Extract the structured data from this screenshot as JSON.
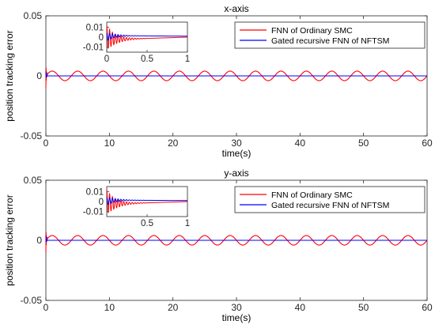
{
  "chart_data": [
    {
      "type": "line",
      "title": "x-axis",
      "xlabel": "time(s)",
      "ylabel": "position tracking error",
      "xlim": [
        0,
        60
      ],
      "ylim": [
        -0.05,
        0.05
      ],
      "xticks": [
        0,
        10,
        20,
        30,
        40,
        50,
        60
      ],
      "xtick_labels": [
        "0",
        "10",
        "20",
        "30",
        "40",
        "50",
        "60"
      ],
      "yticks": [
        -0.05,
        0,
        0.05
      ],
      "ytick_labels": [
        "-0.05",
        "0",
        "0.05"
      ],
      "legend_position": "top-right",
      "series": [
        {
          "name": "FNN of Ordinary SMC",
          "color": "#ff0000",
          "shape": "sinusoid",
          "amplitude": 0.004,
          "period": 4.0,
          "initial_spike": -0.01
        },
        {
          "name": "Gated recursive FNN of NFTSM",
          "color": "#0000ff",
          "shape": "flat",
          "value": 0.0,
          "initial_spike": 0.004
        }
      ],
      "inset": {
        "xlim": [
          0,
          1
        ],
        "ylim": [
          -0.015,
          0.015
        ],
        "xticks": [
          0,
          0.5,
          1
        ],
        "xtick_labels": [
          "0",
          "0.5",
          "1"
        ],
        "yticks": [
          -0.01,
          0,
          0.01
        ],
        "ytick_labels": [
          "-0.01",
          "0",
          "0.01"
        ],
        "series": [
          {
            "name": "FNN of Ordinary SMC",
            "color": "#ff0000",
            "shape": "damped-oscillation",
            "initial_amplitude": 0.012,
            "settle_value": -0.0025,
            "final_value": 0.0
          },
          {
            "name": "Gated recursive FNN of NFTSM",
            "color": "#0000ff",
            "shape": "damped-oscillation",
            "initial_amplitude": 0.004,
            "settle_value": 0.0015,
            "final_value": 0.001
          }
        ]
      }
    },
    {
      "type": "line",
      "title": "y-axis",
      "xlabel": "time(s)",
      "ylabel": "position tracking error",
      "xlim": [
        0,
        60
      ],
      "ylim": [
        -0.05,
        0.05
      ],
      "xticks": [
        0,
        10,
        20,
        30,
        40,
        50,
        60
      ],
      "xtick_labels": [
        "0",
        "10",
        "20",
        "30",
        "40",
        "50",
        "60"
      ],
      "yticks": [
        -0.05,
        0,
        0.05
      ],
      "ytick_labels": [
        "-0.05",
        "0",
        "0.05"
      ],
      "legend_position": "top-right",
      "series": [
        {
          "name": "FNN of Ordinary SMC",
          "color": "#ff0000",
          "shape": "sinusoid",
          "amplitude": 0.004,
          "period": 4.0,
          "initial_spike": -0.01
        },
        {
          "name": "Gated recursive FNN of NFTSM",
          "color": "#0000ff",
          "shape": "flat",
          "value": 0.0,
          "initial_spike": 0.004
        }
      ],
      "inset": {
        "xlim": [
          0,
          1
        ],
        "ylim": [
          -0.015,
          0.015
        ],
        "xticks": [
          0.5,
          1
        ],
        "xtick_labels": [
          "0.5",
          "1"
        ],
        "yticks": [
          -0.01,
          0,
          0.01
        ],
        "ytick_labels": [
          "-0.01",
          "0",
          "0.01"
        ],
        "series": [
          {
            "name": "FNN of Ordinary SMC",
            "color": "#ff0000",
            "shape": "damped-oscillation",
            "initial_amplitude": 0.012,
            "settle_value": -0.0025,
            "final_value": 0.0
          },
          {
            "name": "Gated recursive FNN of NFTSM",
            "color": "#0000ff",
            "shape": "damped-oscillation",
            "initial_amplitude": 0.004,
            "settle_value": 0.0015,
            "final_value": 0.001
          }
        ]
      }
    }
  ]
}
